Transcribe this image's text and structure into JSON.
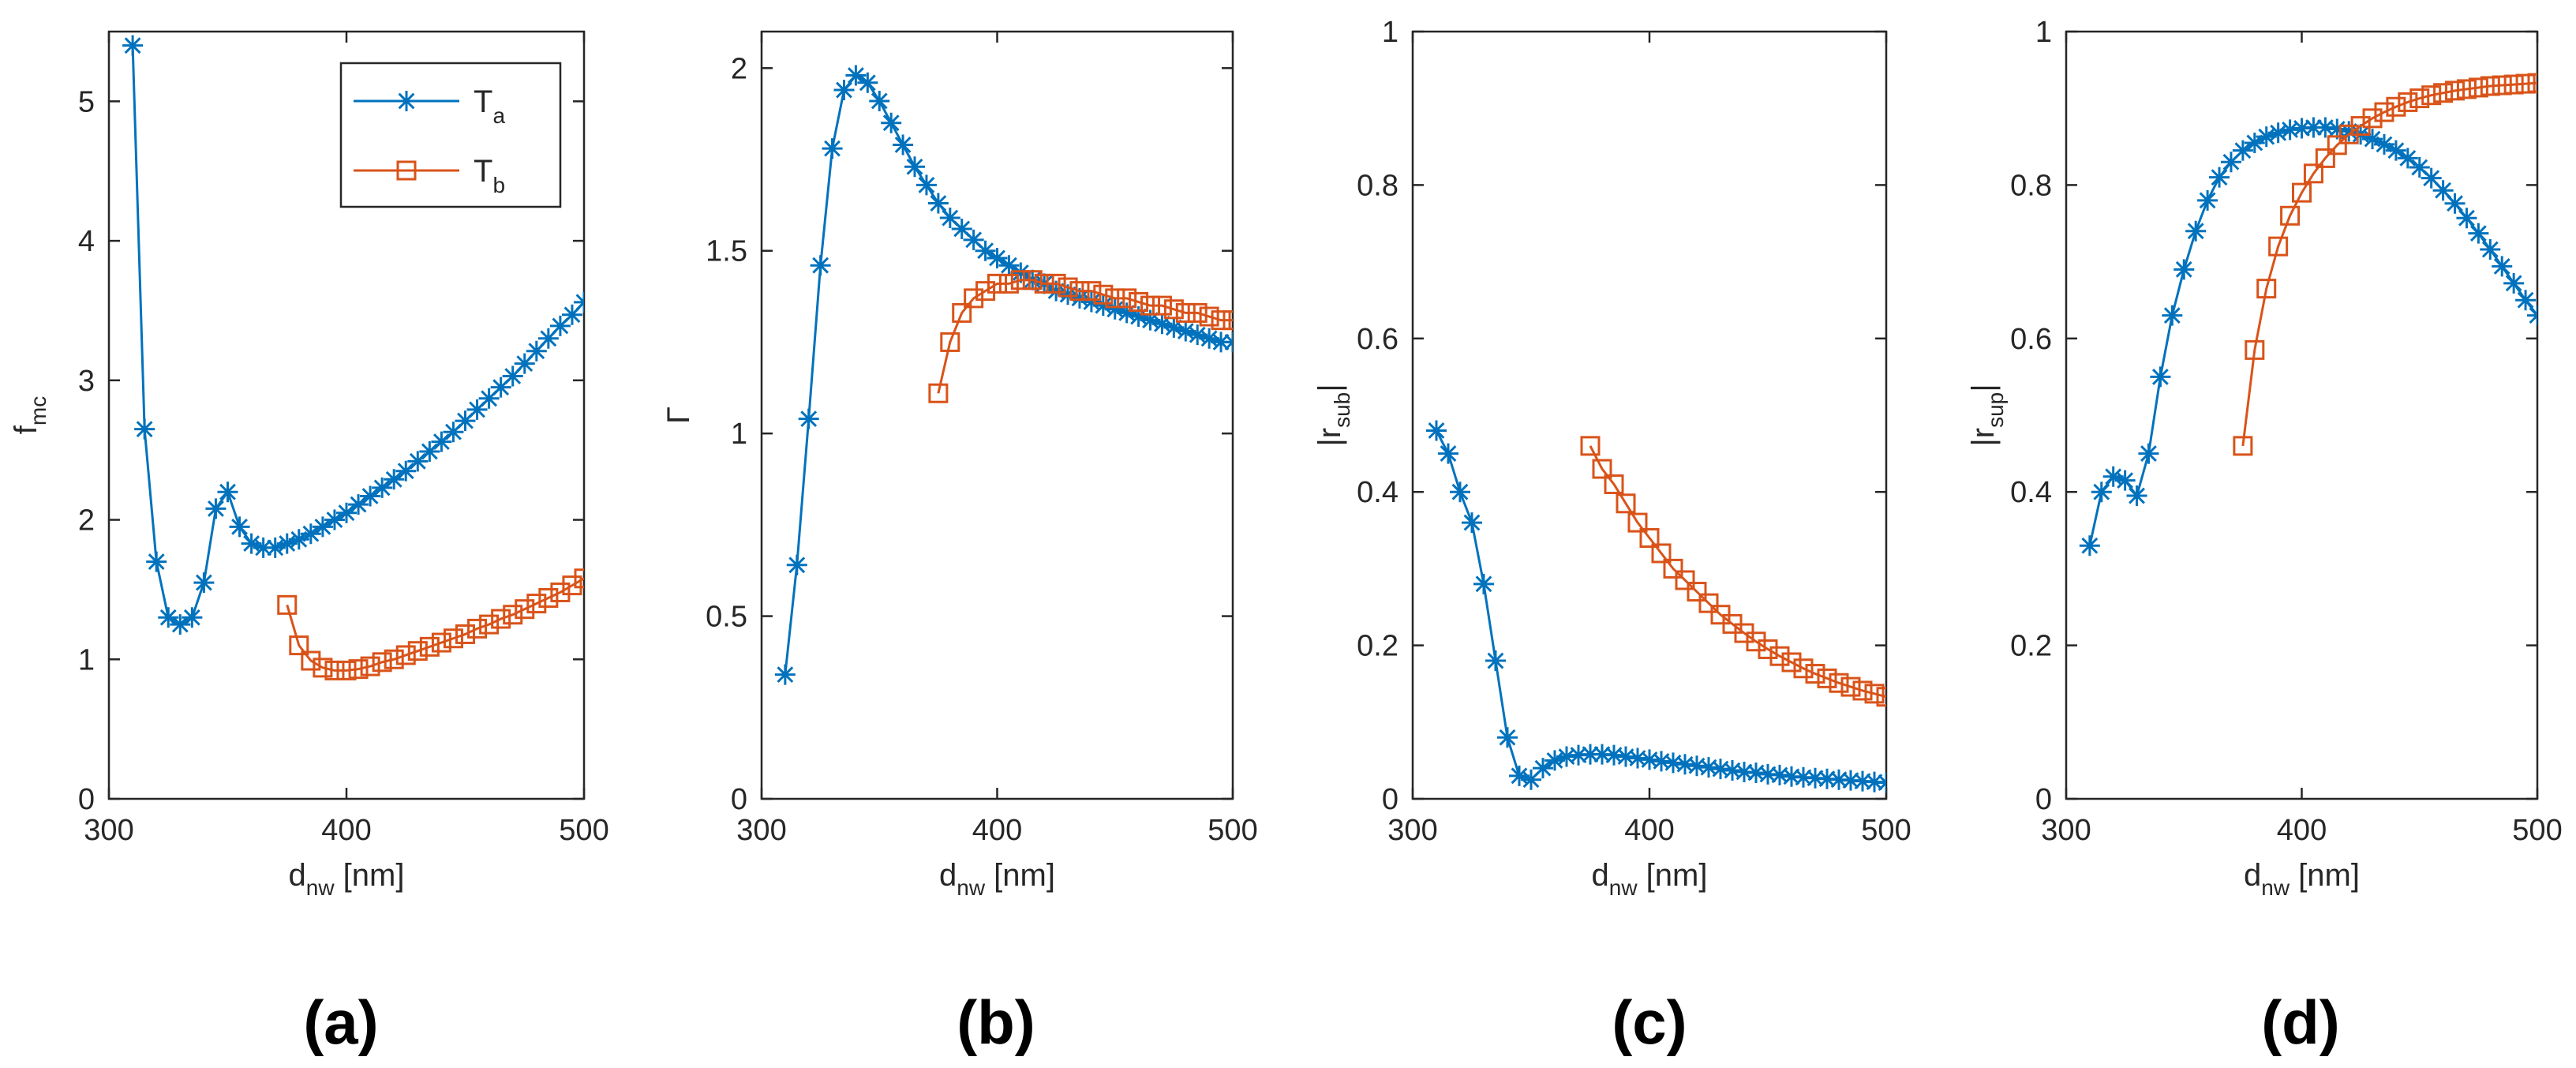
{
  "figure": {
    "colors": {
      "series_a": "#0072BD",
      "series_b": "#D95319",
      "axis": "#262626"
    },
    "legend": [
      {
        "base": "T",
        "sub": "a",
        "marker": "asterisk"
      },
      {
        "base": "T",
        "sub": "b",
        "marker": "square"
      }
    ]
  },
  "chart_data": [
    {
      "type": "line",
      "panel_label": "(a)",
      "title": "",
      "xlabel": {
        "base": "d",
        "sub": "nw",
        "suffix": " [nm]"
      },
      "ylabel": {
        "prefix": "",
        "base": "f",
        "sub": "mc",
        "suffix": ""
      },
      "xlim": [
        300,
        500
      ],
      "ylim": [
        0,
        5.5
      ],
      "xticks": [
        300,
        400,
        500
      ],
      "yticks": [
        0,
        1,
        2,
        3,
        4,
        5
      ],
      "legend_location": "top-right",
      "series": [
        {
          "name": "T_a",
          "marker": "asterisk",
          "x": [
            310,
            315,
            320,
            325,
            330,
            335,
            340,
            345,
            350,
            355,
            360,
            365,
            370,
            375,
            380,
            385,
            390,
            395,
            400,
            405,
            410,
            415,
            420,
            425,
            430,
            435,
            440,
            445,
            450,
            455,
            460,
            465,
            470,
            475,
            480,
            485,
            490,
            495,
            500
          ],
          "y": [
            5.4,
            2.65,
            1.7,
            1.3,
            1.25,
            1.3,
            1.55,
            2.08,
            2.2,
            1.95,
            1.83,
            1.8,
            1.8,
            1.83,
            1.86,
            1.9,
            1.95,
            2.0,
            2.05,
            2.11,
            2.17,
            2.23,
            2.29,
            2.35,
            2.42,
            2.49,
            2.56,
            2.63,
            2.71,
            2.79,
            2.87,
            2.95,
            3.03,
            3.12,
            3.21,
            3.3,
            3.39,
            3.47,
            3.56
          ]
        },
        {
          "name": "T_b",
          "marker": "square",
          "x": [
            375,
            380,
            385,
            390,
            395,
            400,
            405,
            410,
            415,
            420,
            425,
            430,
            435,
            440,
            445,
            450,
            455,
            460,
            465,
            470,
            475,
            480,
            485,
            490,
            495,
            500
          ],
          "y": [
            1.39,
            1.1,
            0.99,
            0.94,
            0.92,
            0.92,
            0.93,
            0.95,
            0.98,
            1.0,
            1.03,
            1.06,
            1.09,
            1.12,
            1.15,
            1.18,
            1.22,
            1.25,
            1.29,
            1.32,
            1.36,
            1.4,
            1.44,
            1.48,
            1.53,
            1.58
          ]
        }
      ]
    },
    {
      "type": "line",
      "panel_label": "(b)",
      "title": "",
      "xlabel": {
        "base": "d",
        "sub": "nw",
        "suffix": " [nm]"
      },
      "ylabel": {
        "prefix": "",
        "base": "Γ",
        "sub": "",
        "suffix": ""
      },
      "xlim": [
        300,
        500
      ],
      "ylim": [
        0,
        2.1
      ],
      "xticks": [
        300,
        400,
        500
      ],
      "yticks": [
        0,
        0.5,
        1,
        1.5,
        2
      ],
      "series": [
        {
          "name": "T_a",
          "marker": "asterisk",
          "x": [
            310,
            315,
            320,
            325,
            330,
            335,
            340,
            345,
            350,
            355,
            360,
            365,
            370,
            375,
            380,
            385,
            390,
            395,
            400,
            405,
            410,
            415,
            420,
            425,
            430,
            435,
            440,
            445,
            450,
            455,
            460,
            465,
            470,
            475,
            480,
            485,
            490,
            495,
            500
          ],
          "y": [
            0.34,
            0.64,
            1.04,
            1.46,
            1.78,
            1.94,
            1.98,
            1.96,
            1.91,
            1.85,
            1.79,
            1.73,
            1.68,
            1.63,
            1.59,
            1.56,
            1.53,
            1.5,
            1.48,
            1.46,
            1.44,
            1.42,
            1.41,
            1.39,
            1.38,
            1.37,
            1.36,
            1.35,
            1.34,
            1.33,
            1.32,
            1.31,
            1.3,
            1.29,
            1.28,
            1.27,
            1.26,
            1.25,
            1.25
          ]
        },
        {
          "name": "T_b",
          "marker": "square",
          "x": [
            375,
            380,
            385,
            390,
            395,
            400,
            405,
            410,
            415,
            420,
            425,
            430,
            435,
            440,
            445,
            450,
            455,
            460,
            465,
            470,
            475,
            480,
            485,
            490,
            495,
            500
          ],
          "y": [
            1.11,
            1.25,
            1.33,
            1.37,
            1.39,
            1.41,
            1.41,
            1.42,
            1.42,
            1.41,
            1.41,
            1.4,
            1.39,
            1.39,
            1.38,
            1.37,
            1.37,
            1.36,
            1.35,
            1.35,
            1.34,
            1.33,
            1.33,
            1.32,
            1.31,
            1.31
          ]
        }
      ]
    },
    {
      "type": "line",
      "panel_label": "(c)",
      "title": "",
      "xlabel": {
        "base": "d",
        "sub": "nw",
        "suffix": " [nm]"
      },
      "ylabel": {
        "prefix": "|",
        "base": "r",
        "sub": "sub",
        "suffix": "|"
      },
      "xlim": [
        300,
        500
      ],
      "ylim": [
        0,
        1
      ],
      "xticks": [
        300,
        400,
        500
      ],
      "yticks": [
        0,
        0.2,
        0.4,
        0.6,
        0.8,
        1
      ],
      "series": [
        {
          "name": "T_a",
          "marker": "asterisk",
          "x": [
            310,
            315,
            320,
            325,
            330,
            335,
            340,
            345,
            350,
            355,
            360,
            365,
            370,
            375,
            380,
            385,
            390,
            395,
            400,
            405,
            410,
            415,
            420,
            425,
            430,
            435,
            440,
            445,
            450,
            455,
            460,
            465,
            470,
            475,
            480,
            485,
            490,
            495,
            500
          ],
          "y": [
            0.48,
            0.45,
            0.4,
            0.36,
            0.28,
            0.18,
            0.08,
            0.03,
            0.025,
            0.04,
            0.05,
            0.055,
            0.057,
            0.058,
            0.058,
            0.057,
            0.055,
            0.053,
            0.051,
            0.049,
            0.047,
            0.045,
            0.043,
            0.041,
            0.039,
            0.037,
            0.035,
            0.034,
            0.032,
            0.031,
            0.029,
            0.028,
            0.027,
            0.026,
            0.025,
            0.024,
            0.023,
            0.022,
            0.021
          ]
        },
        {
          "name": "T_b",
          "marker": "square",
          "x": [
            375,
            380,
            385,
            390,
            395,
            400,
            405,
            410,
            415,
            420,
            425,
            430,
            435,
            440,
            445,
            450,
            455,
            460,
            465,
            470,
            475,
            480,
            485,
            490,
            495,
            500
          ],
          "y": [
            0.46,
            0.43,
            0.41,
            0.385,
            0.36,
            0.34,
            0.32,
            0.3,
            0.285,
            0.27,
            0.255,
            0.24,
            0.228,
            0.216,
            0.205,
            0.195,
            0.186,
            0.178,
            0.17,
            0.163,
            0.157,
            0.151,
            0.146,
            0.141,
            0.137,
            0.133
          ]
        }
      ]
    },
    {
      "type": "line",
      "panel_label": "(d)",
      "title": "",
      "xlabel": {
        "base": "d",
        "sub": "nw",
        "suffix": " [nm]"
      },
      "ylabel": {
        "prefix": "|",
        "base": "r",
        "sub": "sup",
        "suffix": "|"
      },
      "xlim": [
        300,
        500
      ],
      "ylim": [
        0,
        1
      ],
      "xticks": [
        300,
        400,
        500
      ],
      "yticks": [
        0,
        0.2,
        0.4,
        0.6,
        0.8,
        1
      ],
      "series": [
        {
          "name": "T_a",
          "marker": "asterisk",
          "x": [
            310,
            315,
            320,
            325,
            330,
            335,
            340,
            345,
            350,
            355,
            360,
            365,
            370,
            375,
            380,
            385,
            390,
            395,
            400,
            405,
            410,
            415,
            420,
            425,
            430,
            435,
            440,
            445,
            450,
            455,
            460,
            465,
            470,
            475,
            480,
            485,
            490,
            495,
            500
          ],
          "y": [
            0.33,
            0.4,
            0.42,
            0.415,
            0.395,
            0.45,
            0.55,
            0.63,
            0.69,
            0.74,
            0.78,
            0.81,
            0.83,
            0.845,
            0.855,
            0.863,
            0.868,
            0.872,
            0.874,
            0.875,
            0.875,
            0.873,
            0.87,
            0.866,
            0.86,
            0.853,
            0.845,
            0.835,
            0.823,
            0.809,
            0.793,
            0.776,
            0.757,
            0.737,
            0.716,
            0.694,
            0.672,
            0.65,
            0.63
          ]
        },
        {
          "name": "T_b",
          "marker": "square",
          "x": [
            375,
            380,
            385,
            390,
            395,
            400,
            405,
            410,
            415,
            420,
            425,
            430,
            435,
            440,
            445,
            450,
            455,
            460,
            465,
            470,
            475,
            480,
            485,
            490,
            495,
            500
          ],
          "y": [
            0.46,
            0.585,
            0.665,
            0.72,
            0.76,
            0.79,
            0.815,
            0.835,
            0.852,
            0.866,
            0.877,
            0.887,
            0.895,
            0.902,
            0.908,
            0.913,
            0.917,
            0.92,
            0.923,
            0.925,
            0.927,
            0.929,
            0.93,
            0.931,
            0.932,
            0.933
          ]
        }
      ]
    }
  ]
}
